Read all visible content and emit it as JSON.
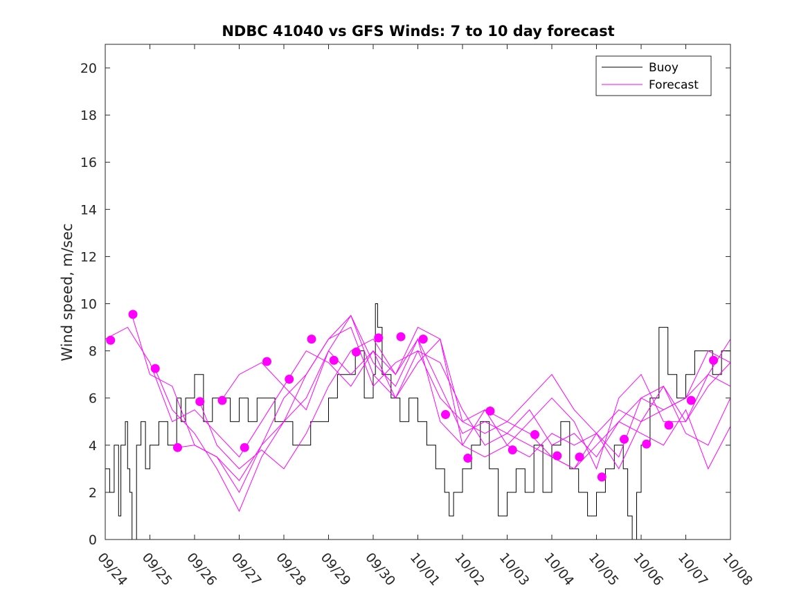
{
  "chart_data": {
    "type": "line",
    "title": "NDBC 41040 vs GFS Winds: 7 to 10 day forecast",
    "xlabel": "",
    "ylabel": "Wind speed, m/sec",
    "xlim": [
      0,
      14
    ],
    "ylim": [
      0,
      21
    ],
    "x_ticks": [
      0,
      1,
      2,
      3,
      4,
      5,
      6,
      7,
      8,
      9,
      10,
      11,
      12,
      13,
      14
    ],
    "x_tick_labels": [
      "09/24",
      "09/25",
      "09/26",
      "09/27",
      "09/28",
      "09/29",
      "09/30",
      "10/01",
      "10/02",
      "10/03",
      "10/04",
      "10/05",
      "10/06",
      "10/07",
      "10/08"
    ],
    "y_ticks": [
      0,
      2,
      4,
      6,
      8,
      10,
      12,
      14,
      16,
      18,
      20
    ],
    "y_tick_labels": [
      "0",
      "2",
      "4",
      "6",
      "8",
      "10",
      "12",
      "14",
      "16",
      "18",
      "20"
    ],
    "legend": {
      "placement": "top-right",
      "entries": [
        "Buoy",
        "Forecast"
      ]
    },
    "colors": {
      "buoy": "#000000",
      "forecast": "#ff00ff"
    },
    "series": [
      {
        "name": "Buoy",
        "x": [
          0,
          0.1,
          0.2,
          0.3,
          0.35,
          0.45,
          0.5,
          0.55,
          0.6,
          0.7,
          0.8,
          0.9,
          1.0,
          1.2,
          1.4,
          1.6,
          1.7,
          1.8,
          2.0,
          2.2,
          2.4,
          2.6,
          2.8,
          3.0,
          3.2,
          3.4,
          3.6,
          3.8,
          4.0,
          4.2,
          4.4,
          4.6,
          4.8,
          5.0,
          5.2,
          5.4,
          5.6,
          5.8,
          6.0,
          6.05,
          6.1,
          6.2,
          6.4,
          6.6,
          6.8,
          7.0,
          7.2,
          7.4,
          7.6,
          7.7,
          7.8,
          7.9,
          8.0,
          8.2,
          8.4,
          8.6,
          8.8,
          9.0,
          9.2,
          9.4,
          9.6,
          9.8,
          10.0,
          10.2,
          10.4,
          10.6,
          10.8,
          11.0,
          11.2,
          11.4,
          11.6,
          11.7,
          11.8,
          11.9,
          12.0,
          12.2,
          12.4,
          12.6,
          12.8,
          13.0,
          13.2,
          13.4,
          13.6,
          13.8,
          14.0
        ],
        "y": [
          3,
          2,
          4,
          1,
          4,
          5,
          3,
          2,
          0,
          4,
          5,
          3,
          4,
          5,
          4,
          6,
          5,
          6,
          7,
          5,
          6,
          6,
          5,
          6,
          5,
          6,
          6,
          5,
          5,
          4,
          4,
          5,
          5,
          6,
          7,
          7,
          8,
          6,
          7,
          10,
          9,
          7,
          6,
          5,
          6,
          5,
          4,
          3,
          2,
          1,
          2,
          2,
          3,
          4,
          5,
          3,
          1,
          2,
          3,
          2,
          4,
          2,
          4,
          5,
          3,
          2,
          1,
          2,
          3,
          4,
          3,
          1,
          0,
          2,
          4,
          6,
          9,
          7,
          6,
          7,
          8,
          8,
          7,
          8,
          8
        ]
      },
      {
        "name": "Forecast",
        "x": [
          0,
          0.5,
          1.0,
          1.5,
          2.0,
          2.5,
          3.0,
          3.5,
          4.0,
          4.5,
          5.0,
          5.5,
          6.0,
          6.5,
          7.0,
          7.5,
          8.0,
          8.5,
          9.0,
          9.5,
          10.0,
          10.5,
          11.0,
          11.5,
          12.0,
          12.5,
          13.0,
          13.5,
          14.0
        ],
        "y": [
          8.5,
          9.0,
          7.5,
          5.0,
          5.5,
          4.5,
          3.5,
          5.0,
          6.5,
          8.0,
          7.5,
          6.5,
          8.0,
          7.0,
          8.5,
          6.5,
          4.5,
          5.0,
          4.5,
          4.0,
          3.5,
          3.0,
          4.5,
          5.5,
          5.0,
          5.5,
          6.0,
          7.0,
          8.5
        ]
      },
      {
        "name": "Forecast",
        "x": [
          0.6,
          1.0,
          1.5,
          2.0,
          2.5,
          3.0,
          3.5,
          4.0,
          4.5,
          5.0,
          5.5,
          6.0,
          6.5,
          7.0,
          7.5,
          8.0,
          8.5,
          9.0,
          9.5,
          10.0,
          10.5,
          11.0,
          11.5,
          12.0,
          12.5,
          13.0,
          13.5,
          14.0
        ],
        "y": [
          9.5,
          7.0,
          6.5,
          4.0,
          3.5,
          2.5,
          4.0,
          5.0,
          7.0,
          8.5,
          9.5,
          7.0,
          6.0,
          8.0,
          7.5,
          5.5,
          4.0,
          4.5,
          5.5,
          4.0,
          4.5,
          3.5,
          5.0,
          6.0,
          6.5,
          5.0,
          6.5,
          7.5
        ]
      },
      {
        "name": "Forecast",
        "x": [
          1.1,
          1.5,
          2.0,
          2.5,
          3.0,
          3.5,
          4.0,
          4.5,
          5.0,
          5.5,
          6.0,
          6.5,
          7.0,
          7.5,
          8.0,
          8.5,
          9.0,
          9.5,
          10.0,
          10.5,
          11.0,
          11.5,
          12.0,
          12.5,
          13.0,
          13.5,
          14.0
        ],
        "y": [
          7.3,
          5.5,
          4.5,
          3.0,
          1.2,
          3.5,
          5.0,
          6.0,
          8.0,
          7.0,
          8.0,
          6.0,
          7.5,
          8.5,
          5.0,
          4.5,
          5.0,
          4.5,
          3.5,
          3.0,
          4.0,
          5.0,
          4.5,
          4.0,
          5.5,
          3.0,
          4.8
        ]
      },
      {
        "name": "Forecast",
        "x": [
          1.6,
          2.0,
          2.5,
          3.0,
          3.5,
          4.0,
          4.5,
          5.0,
          5.5,
          6.0,
          6.5,
          7.0,
          7.5,
          8.0,
          8.5,
          9.0,
          9.5,
          10.0,
          10.5,
          11.0,
          11.5,
          12.0,
          12.5,
          13.0,
          13.5,
          14.0
        ],
        "y": [
          3.9,
          4.0,
          3.5,
          2.0,
          4.0,
          6.0,
          7.0,
          8.5,
          9.0,
          6.5,
          7.5,
          8.0,
          6.0,
          5.0,
          5.5,
          4.0,
          5.0,
          6.0,
          5.0,
          3.0,
          6.0,
          7.0,
          5.0,
          5.0,
          7.0,
          6.5
        ]
      },
      {
        "name": "Forecast",
        "x": [
          2.1,
          2.5,
          3.0,
          3.5,
          4.0,
          4.5,
          5.0,
          5.5,
          6.0,
          6.5,
          7.0,
          7.5,
          8.0,
          8.5,
          9.0,
          9.5,
          10.0,
          10.5,
          11.0,
          11.5,
          12.0,
          12.5,
          13.0,
          13.5,
          14.0
        ],
        "y": [
          5.9,
          4.0,
          3.0,
          3.8,
          3.0,
          4.5,
          6.5,
          8.0,
          8.5,
          7.0,
          9.0,
          8.5,
          4.0,
          3.5,
          4.0,
          3.5,
          4.5,
          4.0,
          4.5,
          3.0,
          5.0,
          6.5,
          4.5,
          4.0,
          6.0
        ]
      },
      {
        "name": "Forecast",
        "x": [
          2.6,
          3.0,
          3.5,
          4.0,
          4.5,
          5.0,
          5.5,
          6.0,
          6.5,
          7.0,
          7.5,
          8.0,
          8.5,
          9.0,
          9.5,
          10.0,
          10.5,
          11.0,
          11.5,
          12.0,
          12.5,
          13.0,
          13.5,
          14.0
        ],
        "y": [
          5.9,
          7.0,
          7.5,
          6.5,
          5.5,
          8.0,
          9.5,
          7.5,
          6.5,
          8.5,
          5.0,
          4.0,
          5.5,
          5.0,
          6.0,
          7.0,
          5.5,
          4.5,
          3.5,
          6.0,
          5.5,
          6.0,
          8.0,
          7.5
        ]
      }
    ],
    "markers": {
      "name": "Forecast",
      "x": [
        0.12,
        0.62,
        1.12,
        1.62,
        2.12,
        2.62,
        3.12,
        3.62,
        4.12,
        4.62,
        5.12,
        5.62,
        6.12,
        6.62,
        7.12,
        7.62,
        8.12,
        8.62,
        9.12,
        9.62,
        10.12,
        10.62,
        11.12,
        11.62,
        12.12,
        12.62,
        13.12,
        13.62
      ],
      "y": [
        8.45,
        9.55,
        7.25,
        3.9,
        5.85,
        5.9,
        3.9,
        7.55,
        6.8,
        8.5,
        7.6,
        7.95,
        8.55,
        8.6,
        8.5,
        5.3,
        3.45,
        5.45,
        3.8,
        4.45,
        3.55,
        3.5,
        2.65,
        4.25,
        4.05,
        4.85,
        5.9,
        7.6
      ]
    }
  }
}
